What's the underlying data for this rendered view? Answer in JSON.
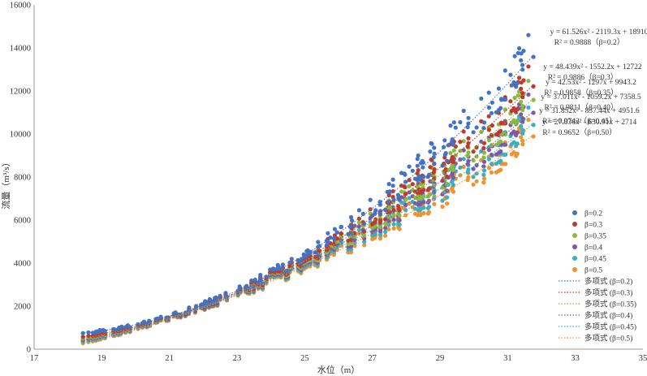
{
  "chart_data": {
    "type": "scatter",
    "title": "",
    "xlabel": "水位（m）",
    "ylabel": "流量（m³/s）",
    "xlim": [
      17,
      35
    ],
    "ylim": [
      0,
      16000
    ],
    "xticks": [
      "17",
      "19",
      "21",
      "23",
      "25",
      "27",
      "29",
      "31",
      "33",
      "35"
    ],
    "yticks": [
      "0",
      "2000",
      "4000",
      "6000",
      "8000",
      "10000",
      "12000",
      "14000",
      "16000"
    ],
    "grid": false,
    "legend_position": "right",
    "x_range_data": [
      18.4,
      31.8
    ],
    "series": [
      {
        "name": "β=0.2",
        "color": "#4472C4",
        "coef": [
          61.526,
          -2119.3,
          18910
        ],
        "equation": "y = 61.526x² - 2119.3x + 18910",
        "r2": "R² = 0.9888（β=0.2）",
        "trend_name": "多项式 (β=0.2)"
      },
      {
        "name": "β=0.3",
        "color": "#C0392B",
        "coef": [
          48.439,
          -1552.2,
          12722
        ],
        "equation": "y = 48.439x² - 1552.2x + 12722",
        "r2": "R² = 0.9886（β=0.3）",
        "trend_name": "多项式 (β=0.3)"
      },
      {
        "name": "β=0.35",
        "color": "#8DB83F",
        "coef": [
          42.53,
          -1297,
          9943.2
        ],
        "equation": "y = 42.53x² - 1297x + 9943.2",
        "r2": "R² = 0.9858（β=0.35）",
        "trend_name": "多项式 (β=0.35)"
      },
      {
        "name": "β=0.4",
        "color": "#7E57A8",
        "coef": [
          37.011,
          -1059.2,
          7358.5
        ],
        "equation": "y = 37.011x² - 1059.2x + 7358.5",
        "r2": "R² = 0.9811（β=0.40）",
        "trend_name": "多项式 (β=0.4)"
      },
      {
        "name": "β=0.45",
        "color": "#3AAFC4",
        "coef": [
          31.852,
          -837.44,
          4951.6
        ],
        "equation": "y = 31.852x² - 837.44x + 4951.6",
        "r2": "R² = 0.9743（β=0.45）",
        "trend_name": "多项式 (β=0.45)"
      },
      {
        "name": "β=0.5",
        "color": "#F0922E",
        "coef": [
          27.036,
          -630.91,
          2714
        ],
        "equation": "y = 27.036x² - 630.91x + 2714",
        "r2": "R² = 0.9652（β=0.50）",
        "trend_name": "多项式 (β=0.5)"
      }
    ]
  }
}
